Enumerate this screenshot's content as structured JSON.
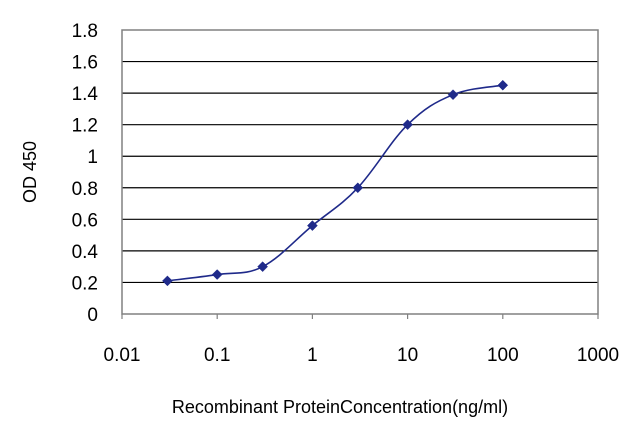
{
  "chart_data": {
    "type": "line",
    "title": "",
    "xlabel": "Recombinant ProteinConcentration(ng/ml)",
    "ylabel": "OD 450",
    "x_scale": "log",
    "xlim": [
      0.01,
      1000
    ],
    "ylim": [
      0,
      1.8
    ],
    "x_ticks": [
      "0.01",
      "0.1",
      "1",
      "10",
      "100",
      "1000"
    ],
    "y_ticks": [
      "0",
      "0.2",
      "0.4",
      "0.6",
      "0.8",
      "1",
      "1.2",
      "1.4",
      "1.6",
      "1.8"
    ],
    "grid": "horizontal",
    "legend": "none",
    "series": [
      {
        "color": "#1f2a8a",
        "marker": "diamond",
        "x": [
          0.03,
          0.1,
          0.3,
          1,
          3,
          10,
          30,
          100
        ],
        "y": [
          0.21,
          0.25,
          0.3,
          0.56,
          0.8,
          1.2,
          1.39,
          1.45
        ]
      }
    ]
  }
}
